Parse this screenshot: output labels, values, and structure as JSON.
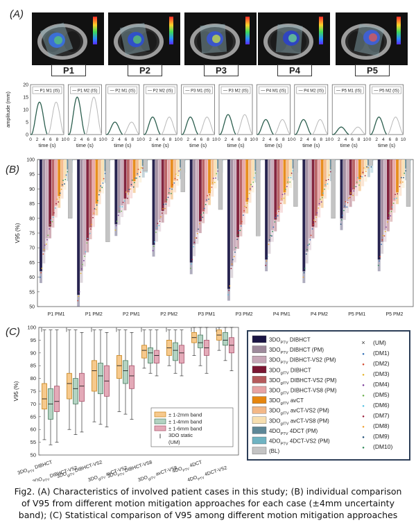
{
  "panel_labels": {
    "a": "(A)",
    "b": "(B)",
    "c": "(C)"
  },
  "patients": [
    "P1",
    "P2",
    "P3",
    "P4",
    "P5"
  ],
  "motion": {
    "ylabel": "amplitude (mm)",
    "xlabel": "time (s)",
    "yticks": [
      "0",
      "5",
      "10",
      "15",
      "20"
    ],
    "xticks": [
      "0",
      "2",
      "4",
      "6",
      "8",
      "10"
    ],
    "panels": [
      {
        "title": "P1 M1 (IS)",
        "amp": 13
      },
      {
        "title": "P1 M2 (IS)",
        "amp": 15
      },
      {
        "title": "P2 M1 (IS)",
        "amp": 5
      },
      {
        "title": "P2 M2 (IS)",
        "amp": 7
      },
      {
        "title": "P3 M1 (IS)",
        "amp": 7
      },
      {
        "title": "P3 M2 (IS)",
        "amp": 8
      },
      {
        "title": "P4 M1 (IS)",
        "amp": 6
      },
      {
        "title": "P4 M2 (IS)",
        "amp": 6
      },
      {
        "title": "P5 M1 (IS)",
        "amp": 3
      },
      {
        "title": "P5 M2 (IS)",
        "amp": 7
      }
    ]
  },
  "chart_data": [
    {
      "type": "bar",
      "ylabel": "V95 (%)",
      "ylim": [
        50,
        100
      ],
      "yticks": [
        "50",
        "55",
        "60",
        "65",
        "70",
        "75",
        "80",
        "85",
        "90",
        "95",
        "100"
      ],
      "categories": [
        "P1 PM1",
        "P1 PM2",
        "P2 PM1",
        "P2 PM2",
        "P3 PM1",
        "P3 PM2",
        "P4 PM1",
        "P4 PM2",
        "P5 PM1",
        "P5 PM2"
      ],
      "case_min_values": [
        62,
        54,
        78,
        71,
        65,
        56,
        66,
        62,
        80,
        66
      ]
    },
    {
      "type": "box",
      "ylabel": "V95 (%)",
      "ylim": [
        50,
        100
      ],
      "yticks": [
        "50",
        "55",
        "60",
        "65",
        "70",
        "75",
        "80",
        "85",
        "90",
        "95",
        "100"
      ],
      "group_labels": [
        {
          "pre": "3DO",
          "sub": "PTV",
          "post": " DIBHCT"
        },
        {
          "pre": "3DO",
          "sub": "PTV",
          "post": " DIBHCT-VS2"
        },
        {
          "pre": "3DO",
          "sub": "gITV",
          "post": " DIBHCT-VS2"
        },
        {
          "pre": "3DO",
          "sub": "gITV",
          "post": " avCT-VS2"
        },
        {
          "pre": "3DO",
          "sub": "PTV",
          "post": " DIBHCT-VS8"
        },
        {
          "pre": "3DO",
          "sub": "gITV",
          "post": " avCT-VS8"
        },
        {
          "pre": "4DO",
          "sub": "PTV",
          "post": " 4DCT"
        },
        {
          "pre": "4DO",
          "sub": "PTV",
          "post": " 4DCT-VS2"
        }
      ],
      "groups": [
        {
          "median": [
            72,
            70,
            71
          ],
          "q1": [
            68,
            64,
            67
          ],
          "q3": [
            78,
            76,
            77
          ],
          "wlo": [
            56,
            54,
            55
          ],
          "whi": [
            99,
            99,
            99
          ]
        },
        {
          "median": [
            78,
            76,
            77
          ],
          "q1": [
            72,
            70,
            71
          ],
          "q3": [
            82,
            80,
            82
          ],
          "wlo": [
            60,
            58,
            59
          ],
          "whi": [
            99,
            99,
            98
          ]
        },
        {
          "median": [
            83,
            81,
            79
          ],
          "q1": [
            75,
            74,
            73
          ],
          "q3": [
            87,
            86,
            85
          ],
          "wlo": [
            63,
            62,
            61
          ],
          "whi": [
            99,
            99,
            98
          ]
        },
        {
          "median": [
            85,
            83,
            81
          ],
          "q1": [
            80,
            78,
            76
          ],
          "q3": [
            89,
            87,
            85
          ],
          "wlo": [
            67,
            66,
            64
          ],
          "whi": [
            99,
            99,
            98
          ]
        },
        {
          "median": [
            91,
            90,
            89
          ],
          "q1": [
            88,
            86,
            86
          ],
          "q3": [
            93,
            92,
            91
          ],
          "wlo": [
            84,
            82,
            81
          ],
          "whi": [
            99,
            99,
            99
          ]
        },
        {
          "median": [
            92,
            91,
            90
          ],
          "q1": [
            89,
            87,
            86
          ],
          "q3": [
            95,
            94,
            93
          ],
          "wlo": [
            85,
            82,
            81
          ],
          "whi": [
            99,
            99,
            99
          ]
        },
        {
          "median": [
            96,
            94,
            92
          ],
          "q1": [
            94,
            92,
            89
          ],
          "q3": [
            98,
            97,
            95
          ],
          "wlo": [
            89,
            85,
            82
          ],
          "whi": [
            100,
            100,
            100
          ]
        },
        {
          "median": [
            97,
            95,
            93
          ],
          "q1": [
            95,
            93,
            90
          ],
          "q3": [
            99,
            98,
            96
          ],
          "wlo": [
            91,
            87,
            83
          ],
          "whi": [
            100,
            100,
            100
          ]
        }
      ],
      "band_legend": [
        {
          "label": "± 1-2mm band",
          "color": "#f6c98d"
        },
        {
          "label": "± 1-4mm band",
          "color": "#b3d3c2"
        },
        {
          "label": "± 1-6mm band",
          "color": "#e3aab8"
        }
      ],
      "static_legend": "3DO static",
      "static_legend_sub": "(UM)"
    }
  ],
  "legend": {
    "approaches": [
      {
        "pre": "3DO",
        "sub": "PTV",
        "post": " DIBHCT",
        "color": "#1a1544"
      },
      {
        "pre": "3DO",
        "sub": "PTV",
        "post": " DIBHCT (PM)",
        "color": "#9e8a9c"
      },
      {
        "pre": "3DO",
        "sub": "PTV",
        "post": " DIBHCT-VS2 (PM)",
        "color": "#c7a7b7"
      },
      {
        "pre": "3DO",
        "sub": "gITV",
        "post": " DIBHCT",
        "color": "#7a1632"
      },
      {
        "pre": "3DO",
        "sub": "gITV",
        "post": " DIBHCT-VS2 (PM)",
        "color": "#b55a5c"
      },
      {
        "pre": "3DO",
        "sub": "gITV",
        "post": " DIBHCT-VS8 (PM)",
        "color": "#e7a3a3"
      },
      {
        "pre": "3DO",
        "sub": "gITV",
        "post": " avCT",
        "color": "#e6860f"
      },
      {
        "pre": "3DO",
        "sub": "gITV",
        "post": " avCT-VS2 (PM)",
        "color": "#f3b887"
      },
      {
        "pre": "3DO",
        "sub": "gITV",
        "post": " avCT-VS8 (PM)",
        "color": "#f7dfb0"
      },
      {
        "pre": "4DO",
        "sub": "PTV",
        "post": " 4DCT (PM)",
        "color": "#5d8797"
      },
      {
        "pre": "4DO",
        "sub": "PTV",
        "post": " 4DCT-VS2 (PM)",
        "color": "#6fb3c2"
      },
      {
        "pre": "",
        "sub": "",
        "post": "(BL)",
        "color": "#c4c4c4"
      }
    ],
    "markers": [
      {
        "label": "(UM)",
        "symbol": "×",
        "color": "#333333"
      },
      {
        "label": "(DM1)",
        "symbol": "●",
        "color": "#2f6db5"
      },
      {
        "label": "(DM2)",
        "symbol": "●",
        "color": "#d2452a"
      },
      {
        "label": "(DM3)",
        "symbol": "●",
        "color": "#e5b328"
      },
      {
        "label": "(DM4)",
        "symbol": "●",
        "color": "#7a3c9a"
      },
      {
        "label": "(DM5)",
        "symbol": "●",
        "color": "#6ab04c"
      },
      {
        "label": "(DM6)",
        "symbol": "●",
        "color": "#57c2e3"
      },
      {
        "label": "(DM7)",
        "symbol": "●",
        "color": "#9b1d3a"
      },
      {
        "label": "(DM8)",
        "symbol": "●",
        "color": "#f0a030"
      },
      {
        "label": "(DM9)",
        "symbol": "●",
        "color": "#1f4e79"
      },
      {
        "label": "(DM10)",
        "symbol": "●",
        "color": "#2e8b57"
      }
    ]
  },
  "caption": [
    "Fig2. (A) Characteristics of involved patient cases in this study; (B) individual comparison",
    "of V95 from different motion mitigation approaches for each case (±4mm uncertainty",
    "band); (C) Statistical comparison of V95 among different motion mitigation approaches"
  ]
}
